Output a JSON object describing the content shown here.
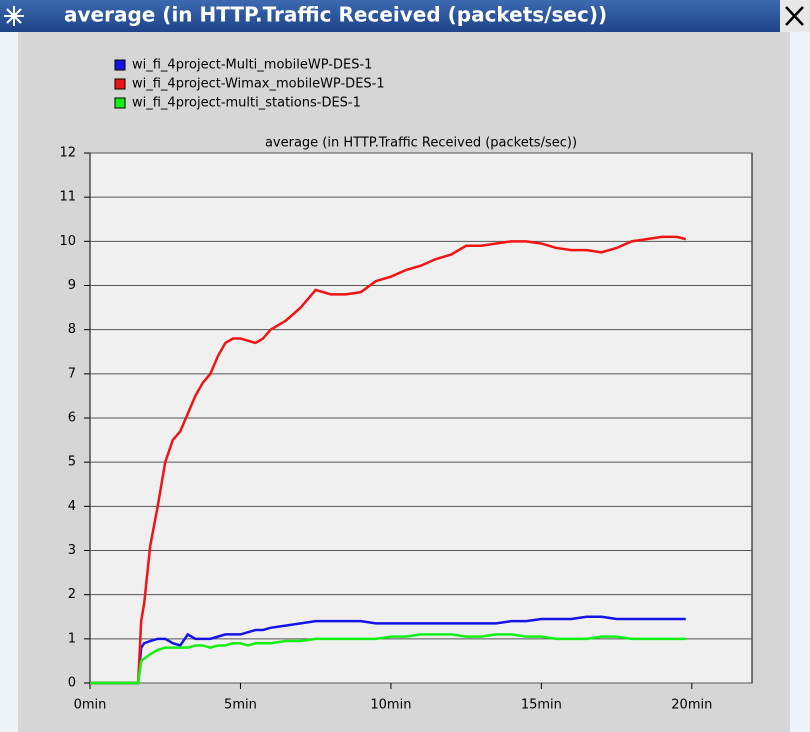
{
  "window_title": "average (in HTTP.Traffic Received (packets/sec))",
  "chart_data": {
    "type": "line",
    "title": "average (in HTTP.Traffic Received (packets/sec))",
    "legend": "top-left",
    "grid": true,
    "x": [
      0,
      1.6,
      1.7,
      1.8,
      2.0,
      2.25,
      2.5,
      2.75,
      3.0,
      3.25,
      3.5,
      3.75,
      4.0,
      4.25,
      4.5,
      4.75,
      5.0,
      5.25,
      5.5,
      5.75,
      6.0,
      6.5,
      7.0,
      7.5,
      8.0,
      8.5,
      9.0,
      9.5,
      10,
      10.5,
      11,
      11.5,
      12,
      12.5,
      13,
      13.5,
      14,
      14.5,
      15,
      15.5,
      16,
      16.5,
      17,
      17.5,
      18,
      18.5,
      19,
      19.5,
      19.8
    ],
    "series": [
      {
        "name": "wi_fi_4project-Multi_mobileWP-DES-1",
        "color": "#1414e6",
        "values": [
          0,
          0,
          0.8,
          0.9,
          0.95,
          1.0,
          1.0,
          0.9,
          0.85,
          1.1,
          1.0,
          1.0,
          1.0,
          1.05,
          1.1,
          1.1,
          1.1,
          1.15,
          1.2,
          1.2,
          1.25,
          1.3,
          1.35,
          1.4,
          1.4,
          1.4,
          1.4,
          1.35,
          1.35,
          1.35,
          1.35,
          1.35,
          1.35,
          1.35,
          1.35,
          1.35,
          1.4,
          1.4,
          1.45,
          1.45,
          1.45,
          1.5,
          1.5,
          1.45,
          1.45,
          1.45,
          1.45,
          1.45,
          1.45
        ]
      },
      {
        "name": "wi_fi_4project-Wimax_mobileWP-DES-1",
        "color": "#f01414",
        "values": [
          0,
          0,
          1.4,
          1.8,
          3.1,
          4.0,
          5.0,
          5.5,
          5.7,
          6.1,
          6.5,
          6.8,
          7.0,
          7.4,
          7.7,
          7.8,
          7.8,
          7.75,
          7.7,
          7.8,
          8.0,
          8.2,
          8.5,
          8.9,
          8.8,
          8.8,
          8.85,
          9.1,
          9.2,
          9.35,
          9.45,
          9.6,
          9.7,
          9.9,
          9.9,
          9.95,
          10.0,
          10.0,
          9.95,
          9.85,
          9.8,
          9.8,
          9.75,
          9.85,
          10.0,
          10.05,
          10.1,
          10.1,
          10.05
        ]
      },
      {
        "name": "wi_fi_4project-multi_stations-DES-1",
        "color": "#14f014",
        "values": [
          0,
          0,
          0.5,
          0.55,
          0.65,
          0.75,
          0.8,
          0.8,
          0.8,
          0.8,
          0.85,
          0.85,
          0.8,
          0.85,
          0.85,
          0.9,
          0.9,
          0.85,
          0.9,
          0.9,
          0.9,
          0.95,
          0.95,
          1.0,
          1.0,
          1.0,
          1.0,
          1.0,
          1.05,
          1.05,
          1.1,
          1.1,
          1.1,
          1.05,
          1.05,
          1.1,
          1.1,
          1.05,
          1.05,
          1.0,
          1.0,
          1.0,
          1.05,
          1.05,
          1.0,
          1.0,
          1.0,
          1.0,
          1.0
        ]
      }
    ],
    "xlim": [
      0,
      22
    ],
    "xticks": [
      {
        "value": 0,
        "label": "0min"
      },
      {
        "value": 5,
        "label": "5min"
      },
      {
        "value": 10,
        "label": "10min"
      },
      {
        "value": 15,
        "label": "15min"
      },
      {
        "value": 20,
        "label": "20min"
      }
    ],
    "ylim": [
      0,
      12
    ],
    "yticks": [
      0,
      1,
      2,
      3,
      4,
      5,
      6,
      7,
      8,
      9,
      10,
      11,
      12
    ]
  }
}
